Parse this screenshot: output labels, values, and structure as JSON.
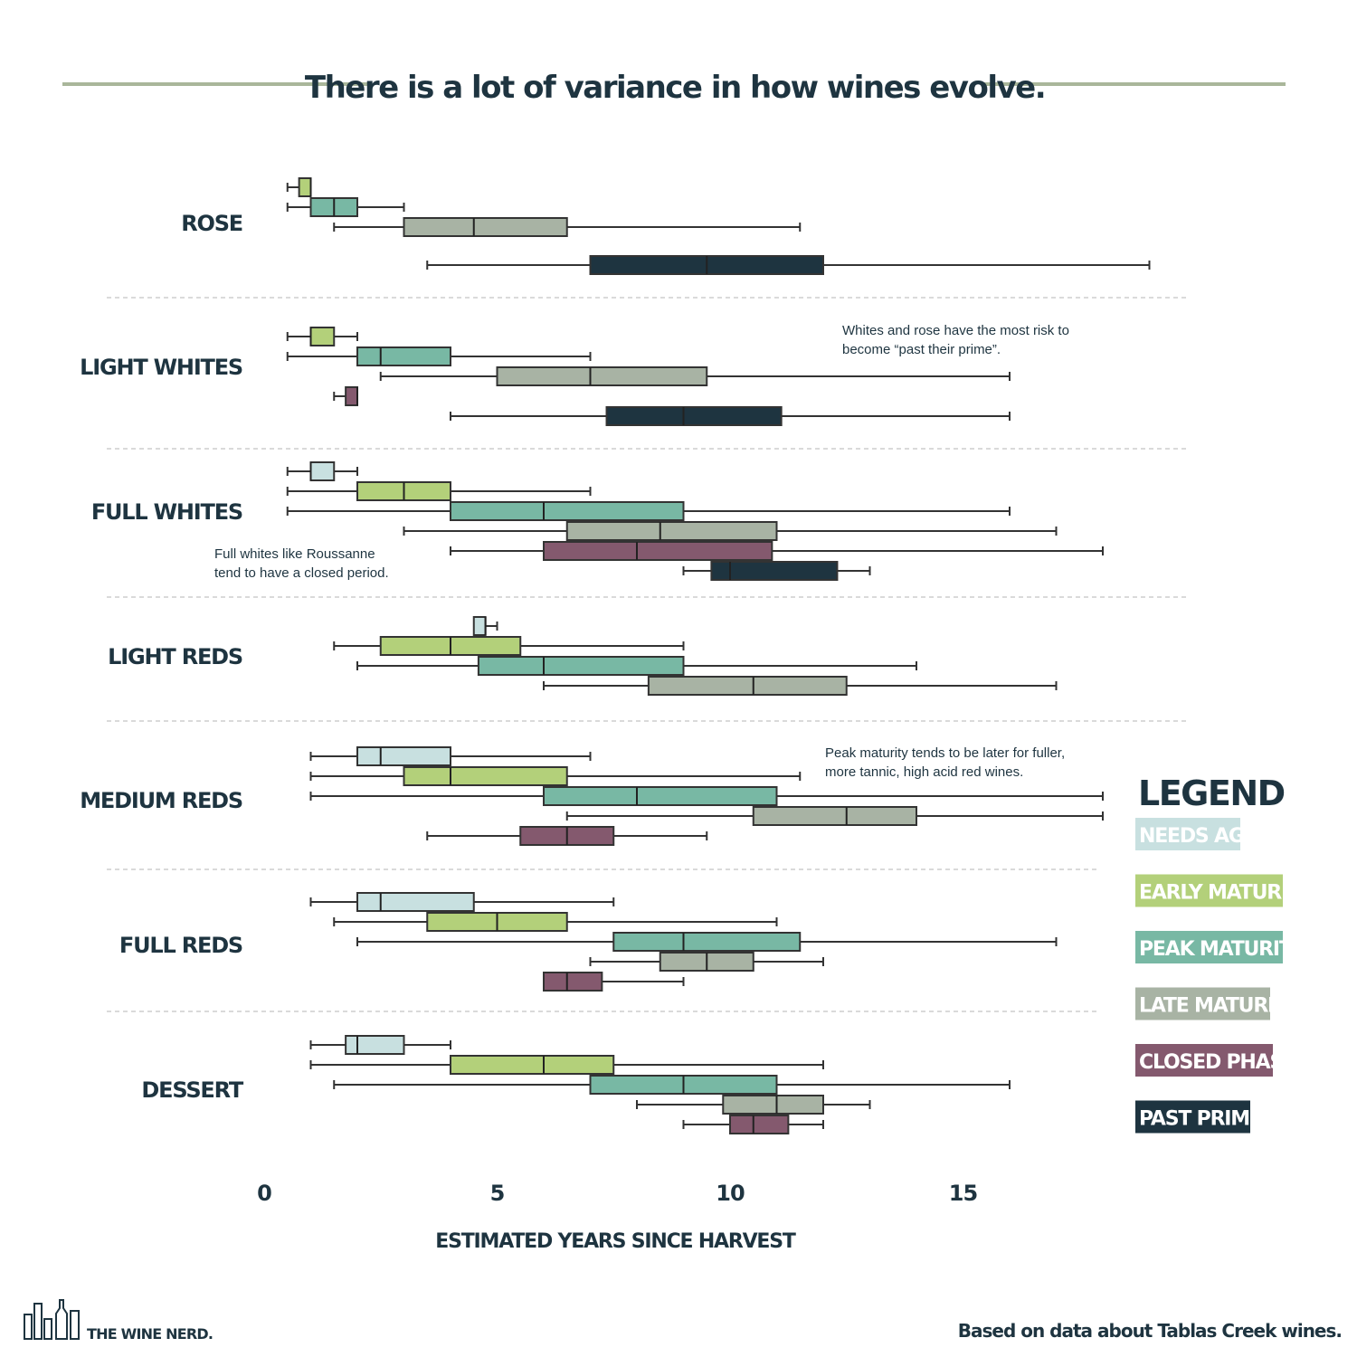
{
  "title": "There is a lot of variance in how wines evolve.",
  "colors": {
    "needs_age": "#c8e0e0",
    "early_maturity": "#b3d07a",
    "peak_maturity": "#78b8a4",
    "late_maturity": "#a8b3a4",
    "closed_phase": "#84596e",
    "past_prime": "#1e3440",
    "rule": "#a9b69a",
    "whisker": "#333333",
    "text": "#1e3440"
  },
  "legend": {
    "title": "LEGEND",
    "items": [
      {
        "key": "needs_age",
        "label": "NEEDS AGE"
      },
      {
        "key": "early_maturity",
        "label": "EARLY MATURITY"
      },
      {
        "key": "peak_maturity",
        "label": "PEAK MATURITY"
      },
      {
        "key": "late_maturity",
        "label": "LATE MATURITY"
      },
      {
        "key": "closed_phase",
        "label": "CLOSED PHASE"
      },
      {
        "key": "past_prime",
        "label": "PAST PRIME"
      }
    ]
  },
  "annotations": [
    {
      "lines": [
        "Whites and rose have the most risk to",
        "become “past their prime”."
      ]
    },
    {
      "lines": [
        "Full whites like Roussanne",
        "tend to have a closed period."
      ]
    },
    {
      "lines": [
        "Peak maturity tends to be later for fuller,",
        "more tannic, high acid red wines."
      ]
    }
  ],
  "footer": {
    "source": "Based on data about Tablas Creek wines.",
    "brand": "THE WINE NERD."
  },
  "chart_data": {
    "type": "boxplot",
    "orientation": "horizontal",
    "xlabel": "ESTIMATED YEARS SINCE HARVEST",
    "xlim": [
      0,
      18
    ],
    "xticks": [
      0,
      5,
      10,
      15
    ],
    "categories": [
      "ROSE",
      "LIGHT WHITES",
      "FULL WHITES",
      "LIGHT REDS",
      "MEDIUM REDS",
      "FULL REDS",
      "DESSERT"
    ],
    "groups": [
      {
        "category": "ROSE",
        "boxes": [
          {
            "phase": "early_maturity",
            "min": 0.5,
            "q1": 0.75,
            "median": 1.0,
            "q3": 1.0
          },
          {
            "phase": "peak_maturity",
            "min": 0.5,
            "q1": 1.0,
            "median": 1.5,
            "q3": 2.0,
            "max": 3.0
          },
          {
            "phase": "late_maturity",
            "min": 1.5,
            "q1": 3.0,
            "median": 4.5,
            "q3": 6.5,
            "max": 11.5
          },
          {
            "phase": "past_prime",
            "min": 3.5,
            "q1": 7.0,
            "median": 9.5,
            "q3": 12.0,
            "max": 19.0
          }
        ]
      },
      {
        "category": "LIGHT WHITES",
        "boxes": [
          {
            "phase": "early_maturity",
            "min": 0.5,
            "q1": 1.0,
            "median": 1.0,
            "q3": 1.5,
            "max": 2.0
          },
          {
            "phase": "peak_maturity",
            "min": 0.5,
            "q1": 2.0,
            "median": 2.5,
            "q3": 4.0,
            "max": 7.0
          },
          {
            "phase": "late_maturity",
            "min": 2.5,
            "q1": 5.0,
            "median": 7.0,
            "q3": 9.5,
            "max": 16.0
          },
          {
            "phase": "closed_phase",
            "min": 1.5,
            "q1": 1.75,
            "median": 2.0,
            "q3": 2.0
          },
          {
            "phase": "past_prime",
            "min": 4.0,
            "q1": 7.35,
            "median": 9.0,
            "q3": 11.1,
            "max": 16.0
          }
        ]
      },
      {
        "category": "FULL WHITES",
        "boxes": [
          {
            "phase": "needs_age",
            "min": 0.5,
            "q1": 1.0,
            "median": 1.0,
            "q3": 1.5,
            "max": 2.0
          },
          {
            "phase": "early_maturity",
            "min": 0.5,
            "q1": 2.0,
            "median": 3.0,
            "q3": 4.0,
            "max": 7.0
          },
          {
            "phase": "peak_maturity",
            "min": 0.5,
            "q1": 4.0,
            "median": 6.0,
            "q3": 9.0,
            "max": 16.0
          },
          {
            "phase": "late_maturity",
            "min": 3.0,
            "q1": 6.5,
            "median": 8.5,
            "q3": 11.0,
            "max": 17.0
          },
          {
            "phase": "closed_phase",
            "min": 4.0,
            "q1": 6.0,
            "median": 8.0,
            "q3": 10.9,
            "max": 18.0
          },
          {
            "phase": "past_prime",
            "min": 9.0,
            "q1": 9.6,
            "median": 10.0,
            "q3": 12.3,
            "max": 13.0
          }
        ]
      },
      {
        "category": "LIGHT REDS",
        "boxes": [
          {
            "phase": "needs_age",
            "min": 4.5,
            "q1": 4.5,
            "median": 4.75,
            "q3": 4.75,
            "max": 5.0
          },
          {
            "phase": "early_maturity",
            "min": 1.5,
            "q1": 2.5,
            "median": 4.0,
            "q3": 5.5,
            "max": 9.0
          },
          {
            "phase": "peak_maturity",
            "min": 2.0,
            "q1": 4.6,
            "median": 6.0,
            "q3": 9.0,
            "max": 14.0
          },
          {
            "phase": "late_maturity",
            "min": 6.0,
            "q1": 8.25,
            "median": 10.5,
            "q3": 12.5,
            "max": 17.0
          }
        ]
      },
      {
        "category": "MEDIUM REDS",
        "boxes": [
          {
            "phase": "needs_age",
            "min": 1.0,
            "q1": 2.0,
            "median": 2.5,
            "q3": 4.0,
            "max": 7.0
          },
          {
            "phase": "early_maturity",
            "min": 1.0,
            "q1": 3.0,
            "median": 4.0,
            "q3": 6.5,
            "max": 11.5
          },
          {
            "phase": "peak_maturity",
            "min": 1.0,
            "q1": 6.0,
            "median": 8.0,
            "q3": 11.0,
            "max": 18.0
          },
          {
            "phase": "late_maturity",
            "min": 6.5,
            "q1": 10.5,
            "median": 12.5,
            "q3": 14.0,
            "max": 18.0
          },
          {
            "phase": "closed_phase",
            "min": 3.5,
            "q1": 5.5,
            "median": 6.5,
            "q3": 7.5,
            "max": 9.5
          }
        ]
      },
      {
        "category": "FULL REDS",
        "boxes": [
          {
            "phase": "needs_age",
            "min": 1.0,
            "q1": 2.0,
            "median": 2.5,
            "q3": 4.5,
            "max": 7.5
          },
          {
            "phase": "early_maturity",
            "min": 1.5,
            "q1": 3.5,
            "median": 5.0,
            "q3": 6.5,
            "max": 11.0
          },
          {
            "phase": "peak_maturity",
            "min": 2.0,
            "q1": 7.5,
            "median": 9.0,
            "q3": 11.5,
            "max": 17.0
          },
          {
            "phase": "late_maturity",
            "min": 7.0,
            "q1": 8.5,
            "median": 9.5,
            "q3": 10.5,
            "max": 12.0
          },
          {
            "phase": "closed_phase",
            "min": 6.0,
            "q1": 6.0,
            "median": 6.5,
            "q3": 7.25,
            "max": 9.0
          }
        ]
      },
      {
        "category": "DESSERT",
        "boxes": [
          {
            "phase": "needs_age",
            "min": 1.0,
            "q1": 1.75,
            "median": 2.0,
            "q3": 3.0,
            "max": 4.0
          },
          {
            "phase": "early_maturity",
            "min": 1.0,
            "q1": 4.0,
            "median": 6.0,
            "q3": 7.5,
            "max": 12.0
          },
          {
            "phase": "peak_maturity",
            "min": 1.5,
            "q1": 7.0,
            "median": 9.0,
            "q3": 11.0,
            "max": 16.0
          },
          {
            "phase": "late_maturity",
            "min": 8.0,
            "q1": 9.85,
            "median": 11.0,
            "q3": 12.0,
            "max": 13.0
          },
          {
            "phase": "closed_phase",
            "min": 9.0,
            "q1": 10.0,
            "median": 10.5,
            "q3": 11.25,
            "max": 12.0
          }
        ]
      }
    ]
  }
}
